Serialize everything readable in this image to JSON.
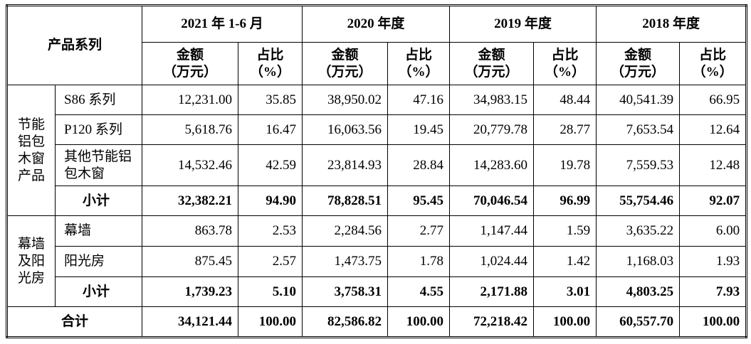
{
  "table": {
    "corner": "产品系列",
    "periods": [
      "2021 年 1-6 月",
      "2020 年度",
      "2019 年度",
      "2018 年度"
    ],
    "amount_header": [
      "金额",
      "（万元）"
    ],
    "share_header": [
      "占比",
      "（%）"
    ],
    "groups": [
      {
        "name": "节能铝包木窗产品",
        "rows": [
          {
            "label": "S86 系列",
            "cells": [
              "12,231.00",
              "35.85",
              "38,950.02",
              "47.16",
              "34,983.15",
              "48.44",
              "40,541.39",
              "66.95"
            ]
          },
          {
            "label": "P120 系列",
            "cells": [
              "5,618.76",
              "16.47",
              "16,063.56",
              "19.45",
              "20,779.78",
              "28.77",
              "7,653.54",
              "12.64"
            ]
          },
          {
            "label": "其他节能铝包木窗",
            "cells": [
              "14,532.46",
              "42.59",
              "23,814.93",
              "28.84",
              "14,283.60",
              "19.78",
              "7,559.53",
              "12.48"
            ]
          }
        ],
        "subtotal": {
          "label": "小计",
          "cells": [
            "32,382.21",
            "94.90",
            "78,828.51",
            "95.45",
            "70,046.54",
            "96.99",
            "55,754.46",
            "92.07"
          ]
        }
      },
      {
        "name": "幕墙及阳光房",
        "rows": [
          {
            "label": "幕墙",
            "cells": [
              "863.78",
              "2.53",
              "2,284.56",
              "2.77",
              "1,147.44",
              "1.59",
              "3,635.22",
              "6.00"
            ]
          },
          {
            "label": "阳光房",
            "cells": [
              "875.45",
              "2.57",
              "1,473.75",
              "1.78",
              "1,024.44",
              "1.42",
              "1,168.03",
              "1.93"
            ]
          }
        ],
        "subtotal": {
          "label": "小计",
          "cells": [
            "1,739.23",
            "5.10",
            "3,758.31",
            "4.55",
            "2,171.88",
            "3.01",
            "4,803.25",
            "7.93"
          ]
        }
      }
    ],
    "total": {
      "label": "合计",
      "cells": [
        "34,121.44",
        "100.00",
        "82,586.82",
        "100.00",
        "72,218.42",
        "100.00",
        "60,557.70",
        "100.00"
      ]
    }
  }
}
